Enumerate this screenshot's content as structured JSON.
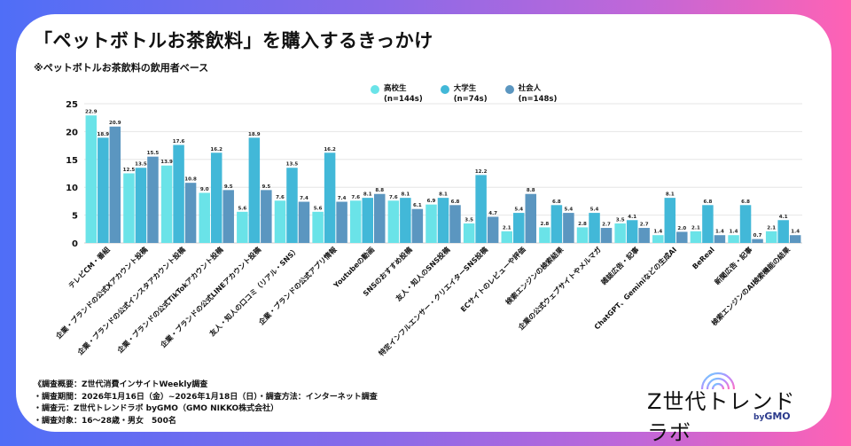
{
  "page": {
    "title": "「ペットボトルお茶飲料」を購入するきっかけ",
    "subtitle": "※ペットボトルお茶飲料の飲用者ベース",
    "notes": [
      "《調査概要：Z世代消費インサイトWeekly調査",
      "・調査期間：2026年1月16日（金）~2026年1月18日（日）・調査方法：インターネット調査",
      "・調査元：Z世代トレンドラボ byGMO（GMO NIKKO株式会社）",
      "・調査対象：16～28歳・男女　500名"
    ],
    "logo": {
      "name": "Z世代トレンドラボ",
      "by": "by",
      "brand": "GMO"
    }
  },
  "legend": [
    {
      "name": "高校生",
      "n": "(n=144s)",
      "color": "#6ae3e8"
    },
    {
      "name": "大学生",
      "n": "(n=74s)",
      "color": "#42b8d8"
    },
    {
      "name": "社会人",
      "n": "(n=148s)",
      "color": "#5b96c0"
    }
  ],
  "chart_data": {
    "type": "bar",
    "title": "「ペットボトルお茶飲料」を購入するきっかけ",
    "subtitle": "※ペットボトルお茶飲料の飲用者ベース",
    "xlabel": "",
    "ylabel": "",
    "ylim": [
      0,
      25
    ],
    "yticks": [
      0,
      5,
      10,
      15,
      20,
      25
    ],
    "grid": true,
    "legend_position": "top-center",
    "categories": [
      "テレビCM・番組",
      "企業・ブランドの公式Xアカウント投稿",
      "企業・ブランドの公式インスタアカウント投稿",
      "企業・ブランドの公式TikTokアカウント投稿",
      "企業・ブランドの公式LINEアカウント投稿",
      "友人・知人の口コミ（リアル・SNS）",
      "企業・ブランドの公式アプリ情報",
      "Youtubeの動画",
      "SNSのおすすめ投稿",
      "友人・知人のSNS投稿",
      "特定インフルエンサー・クリエイターSNS投稿",
      "ECサイトのレビューや評価",
      "検索エンジンの検索結果",
      "企業の公式ウェブサイトやメルマガ",
      "雑誌広告・記事",
      "ChatGPT、Geminiなどの生成AI",
      "BeReal",
      "新聞広告・記事",
      "検索エンジンのAI検索機能の結果"
    ],
    "series": [
      {
        "name": "高校生",
        "color": "#6ae3e8",
        "values": [
          22.9,
          12.5,
          13.9,
          9.0,
          5.6,
          7.6,
          5.6,
          7.6,
          7.6,
          6.9,
          3.5,
          2.1,
          2.8,
          2.8,
          3.5,
          1.4,
          2.1,
          1.4,
          2.1
        ]
      },
      {
        "name": "大学生",
        "color": "#42b8d8",
        "values": [
          18.9,
          13.5,
          17.6,
          16.2,
          18.9,
          13.5,
          16.2,
          8.1,
          8.1,
          8.1,
          12.2,
          5.4,
          6.8,
          5.4,
          4.1,
          8.1,
          6.8,
          6.8,
          4.1
        ]
      },
      {
        "name": "社会人",
        "color": "#5b96c0",
        "values": [
          20.9,
          15.5,
          10.8,
          9.5,
          9.5,
          7.4,
          7.4,
          8.8,
          6.1,
          6.8,
          4.7,
          8.8,
          5.4,
          2.7,
          2.7,
          2.0,
          1.4,
          0.7,
          1.4
        ]
      }
    ]
  }
}
